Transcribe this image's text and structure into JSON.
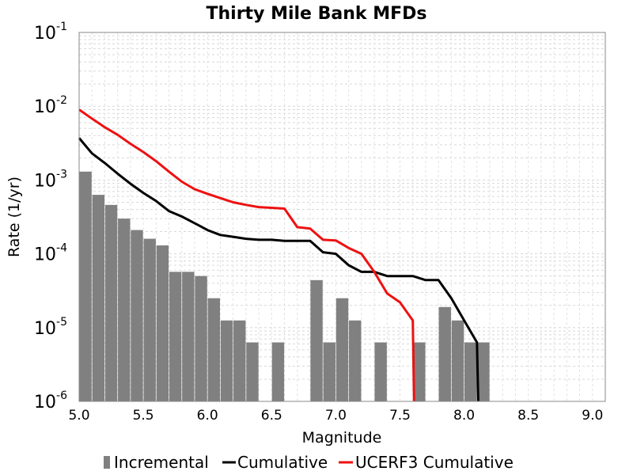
{
  "chart_data": {
    "type": "bar",
    "title": "Thirty Mile Bank MFDs",
    "xlabel": "Magnitude",
    "ylabel": "Rate (1/yr)",
    "xlim": [
      5.0,
      9.1
    ],
    "ylim": [
      1e-06,
      0.1
    ],
    "yscale": "log",
    "grid": true,
    "legend_position": "bottom",
    "xticks": [
      "5.0",
      "5.5",
      "6.0",
      "6.5",
      "7.0",
      "7.5",
      "8.0",
      "8.5",
      "9.0"
    ],
    "yticks": [
      {
        "base": "10",
        "exp": "-6"
      },
      {
        "base": "10",
        "exp": "-5"
      },
      {
        "base": "10",
        "exp": "-4"
      },
      {
        "base": "10",
        "exp": "-3"
      },
      {
        "base": "10",
        "exp": "-2"
      },
      {
        "base": "10",
        "exp": "-1"
      }
    ],
    "series": [
      {
        "name": "Incremental",
        "kind": "bar",
        "color": "#808080",
        "x": [
          5.05,
          5.15,
          5.25,
          5.35,
          5.45,
          5.55,
          5.65,
          5.75,
          5.85,
          5.95,
          6.05,
          6.15,
          6.25,
          6.35,
          6.55,
          6.85,
          6.95,
          7.05,
          7.15,
          7.35,
          7.65,
          7.85,
          7.95,
          8.05,
          8.15
        ],
        "y": [
          0.0013,
          0.00063,
          0.00046,
          0.0003,
          0.00021,
          0.00016,
          0.00013,
          5.7e-05,
          5.7e-05,
          5e-05,
          2.5e-05,
          1.25e-05,
          1.25e-05,
          6.3e-06,
          6.3e-06,
          4.4e-05,
          6.3e-06,
          2.5e-05,
          1.25e-05,
          6.3e-06,
          6.3e-06,
          1.9e-05,
          1.25e-05,
          6.3e-06,
          6.3e-06
        ]
      },
      {
        "name": "Cumulative",
        "kind": "line",
        "color": "#000000",
        "x": [
          5.0,
          5.1,
          5.2,
          5.3,
          5.4,
          5.5,
          5.6,
          5.7,
          5.8,
          5.9,
          6.0,
          6.1,
          6.2,
          6.3,
          6.4,
          6.5,
          6.6,
          6.7,
          6.8,
          6.9,
          7.0,
          7.1,
          7.2,
          7.3,
          7.4,
          7.5,
          7.6,
          7.7,
          7.8,
          7.9,
          8.0,
          8.1,
          8.11
        ],
        "y": [
          0.0037,
          0.0023,
          0.0017,
          0.00122,
          0.00089,
          0.00067,
          0.00052,
          0.00038,
          0.00032,
          0.00026,
          0.00021,
          0.00018,
          0.00017,
          0.00016,
          0.000155,
          0.000155,
          0.00015,
          0.00015,
          0.00015,
          0.000105,
          0.0001,
          7e-05,
          5.7e-05,
          5.7e-05,
          5e-05,
          5e-05,
          5e-05,
          4.4e-05,
          4.4e-05,
          2.5e-05,
          1.25e-05,
          6.3e-06,
          1e-06
        ]
      },
      {
        "name": "UCERF3 Cumulative",
        "kind": "line",
        "color": "#ee1111",
        "x": [
          5.0,
          5.1,
          5.2,
          5.3,
          5.4,
          5.5,
          5.6,
          5.7,
          5.8,
          5.9,
          6.0,
          6.1,
          6.2,
          6.3,
          6.4,
          6.5,
          6.6,
          6.7,
          6.8,
          6.9,
          7.0,
          7.1,
          7.2,
          7.3,
          7.4,
          7.5,
          7.6,
          7.61
        ],
        "y": [
          0.009,
          0.0068,
          0.0052,
          0.0041,
          0.0031,
          0.0024,
          0.0018,
          0.0013,
          0.00095,
          0.00075,
          0.00065,
          0.00057,
          0.0005,
          0.00046,
          0.00043,
          0.00042,
          0.00041,
          0.00023,
          0.00022,
          0.000155,
          0.000152,
          0.00012,
          0.0001,
          5.7e-05,
          2.9e-05,
          2.2e-05,
          1.25e-05,
          1e-06
        ]
      }
    ]
  }
}
